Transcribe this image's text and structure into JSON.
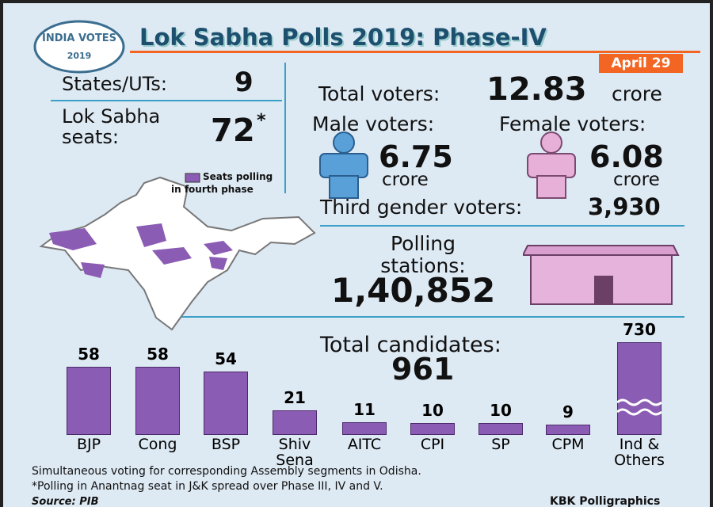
{
  "header": {
    "logo_top": "INDIA VOTES",
    "logo_year": "2019",
    "title": "Lok Sabha Polls 2019: Phase-IV",
    "date": "April 29"
  },
  "stats": {
    "states_label": "States/UTs:",
    "states_value": "9",
    "seats_label": "Lok Sabha seats:",
    "seats_value": "72",
    "seats_mark": "*",
    "total_voters_label": "Total voters:",
    "total_voters_value": "12.83",
    "total_voters_unit": "crore",
    "male_label": "Male voters:",
    "male_value": "6.75",
    "male_unit": "crore",
    "female_label": "Female voters:",
    "female_value": "6.08",
    "female_unit": "crore",
    "third_gender_label": "Third gender voters:",
    "third_gender_value": "3,930",
    "polling_label": "Polling stations:",
    "polling_value": "1,40,852"
  },
  "map": {
    "legend": "Seats polling in fourth phase"
  },
  "chart_data": {
    "type": "bar",
    "title": "Total candidates:",
    "total": "961",
    "categories": [
      "BJP",
      "Cong",
      "BSP",
      "Shiv Sena",
      "AITC",
      "CPI",
      "SP",
      "CPM",
      "Ind & Others"
    ],
    "values": [
      58,
      58,
      54,
      21,
      11,
      10,
      10,
      9,
      730
    ],
    "color": "#8b5cb3"
  },
  "footer": {
    "note1": "Simultaneous voting for corresponding Assembly segments in Odisha.",
    "note2": "*Polling in Anantnag seat in J&K spread over Phase III, IV and V.",
    "source": "Source: PIB",
    "credit": "KBK Polligraphics"
  }
}
